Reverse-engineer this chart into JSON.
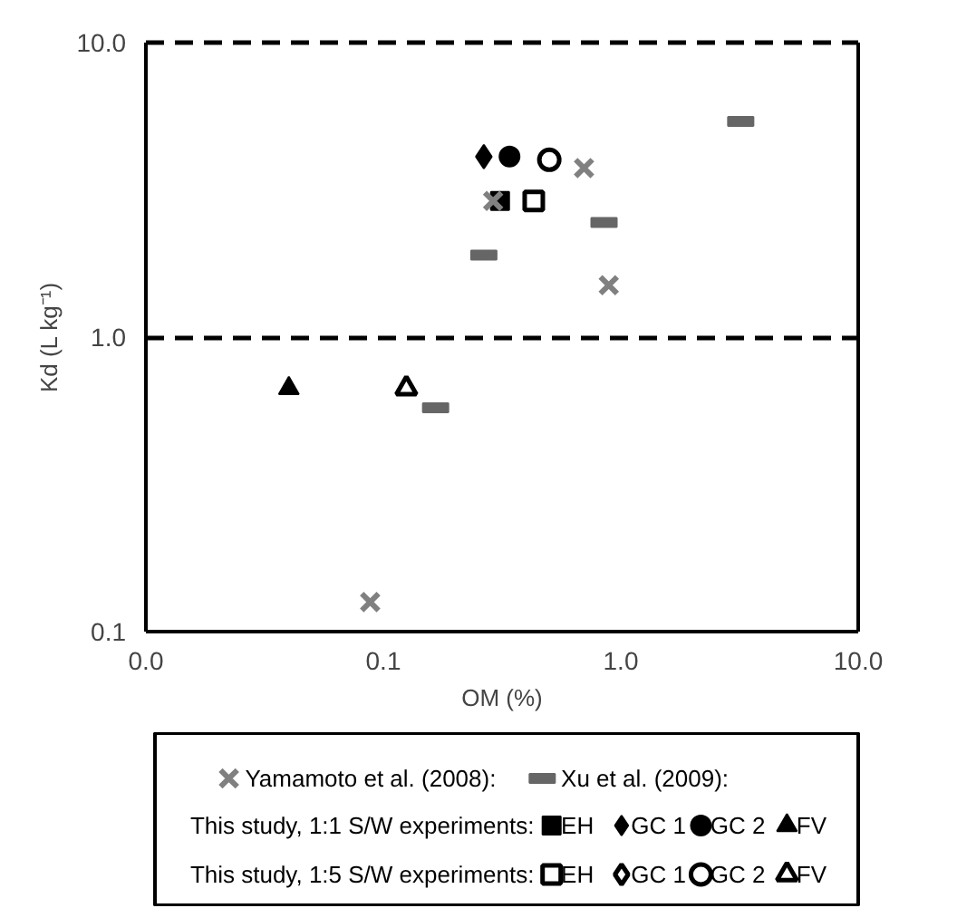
{
  "chart_data": {
    "type": "scatter",
    "xlabel": "OM (%)",
    "ylabel": "Kd (L kg⁻¹)",
    "log": "xy",
    "grid": "y",
    "xlim": [
      0.01,
      10
    ],
    "ylim": [
      0.1,
      10
    ],
    "xticks": [
      {
        "value": 0.01,
        "label": "0.0"
      },
      {
        "value": 0.1,
        "label": "0.1"
      },
      {
        "value": 1,
        "label": "1.0"
      },
      {
        "value": 10,
        "label": "10.0"
      }
    ],
    "yticks": [
      {
        "value": 0.1,
        "label": "0.1"
      },
      {
        "value": 1,
        "label": "1.0"
      },
      {
        "value": 10,
        "label": "10.0"
      }
    ],
    "legend": "bottom",
    "annotations": [
      "This study, 1:1 S/W experiments:",
      "This study, 1:5 S/W experiments:"
    ],
    "series": [
      {
        "name": "Yamamoto et al. (2008):",
        "marker": "cross",
        "color": "#808080",
        "x": [
          0.7,
          0.29,
          0.89,
          0.088
        ],
        "values": [
          3.75,
          2.9,
          1.5,
          0.126
        ]
      },
      {
        "name": "Xu et al. (2009):",
        "color": "#666666",
        "x": [
          3.2,
          0.85,
          0.265,
          0.166
        ],
        "values": [
          5.4,
          2.45,
          1.9,
          0.575
        ]
      },
      {
        "name": "EH",
        "marker": "square",
        "color": "#000000",
        "x": [
          0.31
        ],
        "values": [
          2.9
        ]
      },
      {
        "name": "GC 1",
        "marker": "diamond",
        "color": "#000000",
        "x": [
          0.265
        ],
        "values": [
          4.1
        ]
      },
      {
        "name": "GC 2",
        "marker": "circle",
        "color": "#000000",
        "x": [
          0.34
        ],
        "values": [
          4.1
        ]
      },
      {
        "name": "FV",
        "marker": "triangle",
        "color": "#000000",
        "x": [
          0.04
        ],
        "values": [
          0.67
        ]
      },
      {
        "name": "EH",
        "marker": "square",
        "color": "#000000",
        "x": [
          0.43
        ],
        "values": [
          2.9
        ]
      },
      {
        "name": "GC 1",
        "marker": "diamond",
        "color": "#000000",
        "x": [
          null
        ],
        "values": [
          null
        ]
      },
      {
        "name": "GC 2",
        "marker": "circle",
        "color": "#000000",
        "x": [
          0.5
        ],
        "values": [
          4.0
        ]
      },
      {
        "name": "FV",
        "marker": "triangle",
        "color": "#000000",
        "x": [
          0.125
        ],
        "values": [
          0.67
        ]
      }
    ]
  }
}
